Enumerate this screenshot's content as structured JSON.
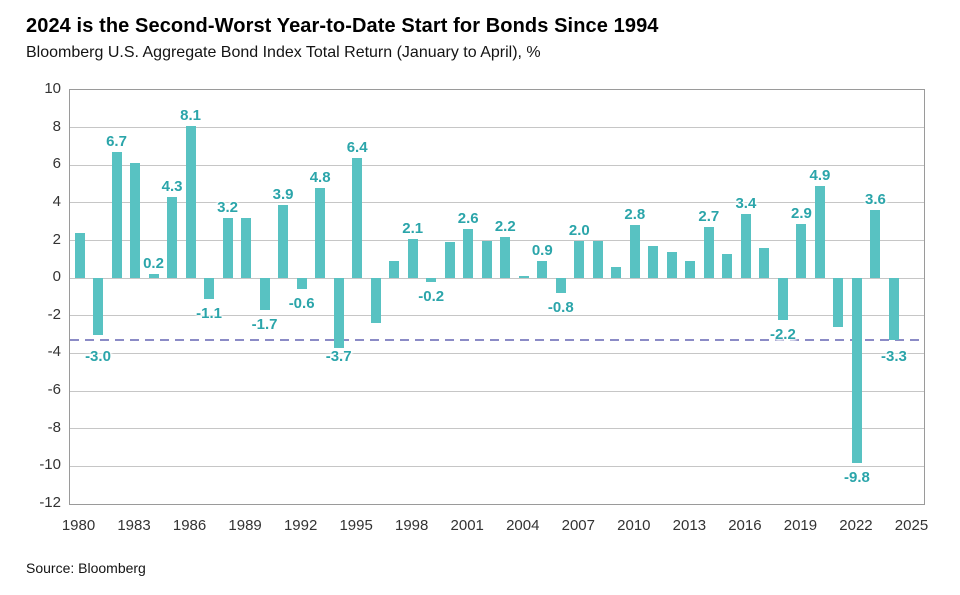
{
  "header": {
    "title": "2024 is the Second-Worst Year-to-Date Start for Bonds Since 1994",
    "subtitle": "Bloomberg U.S. Aggregate Bond Index Total Return (January to April), %"
  },
  "footer": {
    "source": "Source: Bloomberg"
  },
  "colors": {
    "bar": "#58C2C2",
    "bar_label": "#2BA5AA",
    "reference_line": "#8B8BC6",
    "gridline": "#C6C6C6",
    "axis_border": "#9A9A9A",
    "axis_text": "#333333",
    "title_text": "#000000"
  },
  "chart_data": {
    "type": "bar",
    "title": "2024 is the Second-Worst Year-to-Date Start for Bonds Since 1994",
    "subtitle": "Bloomberg U.S. Aggregate Bond Index Total Return (January to April), %",
    "xlabel": "",
    "ylabel": "%",
    "ylim": [
      -12,
      10
    ],
    "y_ticks": [
      10,
      8,
      6,
      4,
      2,
      0,
      -2,
      -4,
      -6,
      -8,
      -10,
      -12
    ],
    "x_tick_labels": [
      "1980",
      "1983",
      "1986",
      "1989",
      "1992",
      "1995",
      "1998",
      "2001",
      "2004",
      "2007",
      "2010",
      "2013",
      "2016",
      "2019",
      "2022",
      "2025"
    ],
    "grid": true,
    "legend": false,
    "reference_line": {
      "value": -3.3,
      "style": "dashed"
    },
    "points": [
      {
        "year": 1980,
        "value": 2.4,
        "label": null
      },
      {
        "year": 1981,
        "value": -3.0,
        "label": "-3.0"
      },
      {
        "year": 1982,
        "value": 6.7,
        "label": "6.7"
      },
      {
        "year": 1983,
        "value": 6.1,
        "label": null
      },
      {
        "year": 1984,
        "value": 0.2,
        "label": "0.2"
      },
      {
        "year": 1985,
        "value": 4.3,
        "label": "4.3"
      },
      {
        "year": 1986,
        "value": 8.1,
        "label": "8.1"
      },
      {
        "year": 1987,
        "value": -1.1,
        "label": "-1.1"
      },
      {
        "year": 1988,
        "value": 3.2,
        "label": "3.2"
      },
      {
        "year": 1989,
        "value": 3.2,
        "label": null
      },
      {
        "year": 1990,
        "value": -1.7,
        "label": "-1.7"
      },
      {
        "year": 1991,
        "value": 3.9,
        "label": "3.9"
      },
      {
        "year": 1992,
        "value": -0.6,
        "label": "-0.6"
      },
      {
        "year": 1993,
        "value": 4.8,
        "label": "4.8"
      },
      {
        "year": 1994,
        "value": -3.7,
        "label": "-3.7"
      },
      {
        "year": 1995,
        "value": 6.4,
        "label": "6.4"
      },
      {
        "year": 1996,
        "value": -2.4,
        "label": null
      },
      {
        "year": 1997,
        "value": 0.9,
        "label": null
      },
      {
        "year": 1998,
        "value": 2.1,
        "label": "2.1"
      },
      {
        "year": 1999,
        "value": -0.2,
        "label": "-0.2"
      },
      {
        "year": 2000,
        "value": 1.9,
        "label": null
      },
      {
        "year": 2001,
        "value": 2.6,
        "label": "2.6"
      },
      {
        "year": 2002,
        "value": 2.0,
        "label": null
      },
      {
        "year": 2003,
        "value": 2.2,
        "label": "2.2"
      },
      {
        "year": 2004,
        "value": 0.1,
        "label": null
      },
      {
        "year": 2005,
        "value": 0.9,
        "label": "0.9"
      },
      {
        "year": 2006,
        "value": -0.8,
        "label": "-0.8"
      },
      {
        "year": 2007,
        "value": 2.0,
        "label": "2.0"
      },
      {
        "year": 2008,
        "value": 2.0,
        "label": null
      },
      {
        "year": 2009,
        "value": 0.6,
        "label": null
      },
      {
        "year": 2010,
        "value": 2.8,
        "label": "2.8"
      },
      {
        "year": 2011,
        "value": 1.7,
        "label": null
      },
      {
        "year": 2012,
        "value": 1.4,
        "label": null
      },
      {
        "year": 2013,
        "value": 0.9,
        "label": null
      },
      {
        "year": 2014,
        "value": 2.7,
        "label": "2.7"
      },
      {
        "year": 2015,
        "value": 1.3,
        "label": null
      },
      {
        "year": 2016,
        "value": 3.4,
        "label": "3.4"
      },
      {
        "year": 2017,
        "value": 1.6,
        "label": null
      },
      {
        "year": 2018,
        "value": -2.2,
        "label": "-2.2"
      },
      {
        "year": 2019,
        "value": 2.9,
        "label": "2.9"
      },
      {
        "year": 2020,
        "value": 4.9,
        "label": "4.9"
      },
      {
        "year": 2021,
        "value": -2.6,
        "label": null
      },
      {
        "year": 2022,
        "value": -9.8,
        "label": "-9.8"
      },
      {
        "year": 2023,
        "value": 3.6,
        "label": "3.6"
      },
      {
        "year": 2024,
        "value": -3.3,
        "label": "-3.3"
      }
    ]
  }
}
